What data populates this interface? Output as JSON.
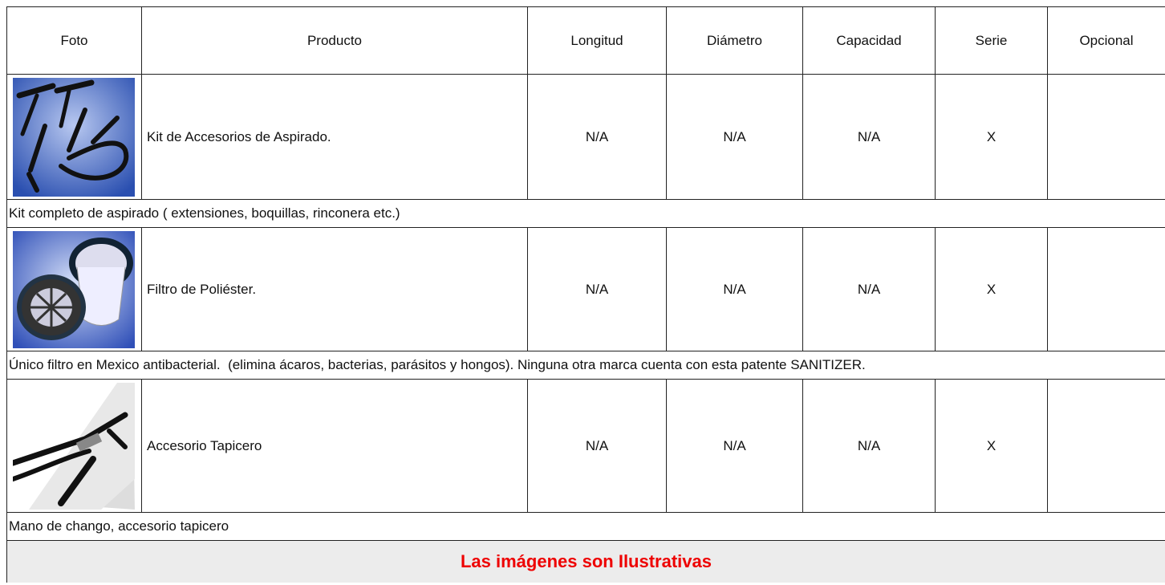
{
  "header": {
    "columns": [
      "Foto",
      "Producto",
      "Longitud",
      "Diámetro",
      "Capacidad",
      "Serie",
      "Opcional"
    ]
  },
  "rows": [
    {
      "product": "Kit de Accesorios de Aspirado.",
      "longitud": "N/A",
      "diametro": "N/A",
      "capacidad": "N/A",
      "serie": "X",
      "note": "Kit completo de aspirado ( extensiones, boquillas, rinconera etc.)"
    },
    {
      "product": "Filtro de Poliéster.",
      "longitud": "N/A",
      "diametro": "N/A",
      "capacidad": "N/A",
      "serie": "X",
      "note": "Único filtro en Mexico antibacterial.  (elimina ácaros, bacterias, parásitos y hongos). Ninguna otra marca cuenta con esta patente SANITIZER."
    },
    {
      "product": "Accesorio Tapicero",
      "longitud": "N/A",
      "diametro": "N/A",
      "capacidad": "N/A",
      "serie": "X",
      "note": "Mano de chango, accesorio tapicero"
    }
  ],
  "footer": "Las imágenes son Ilustrativas"
}
